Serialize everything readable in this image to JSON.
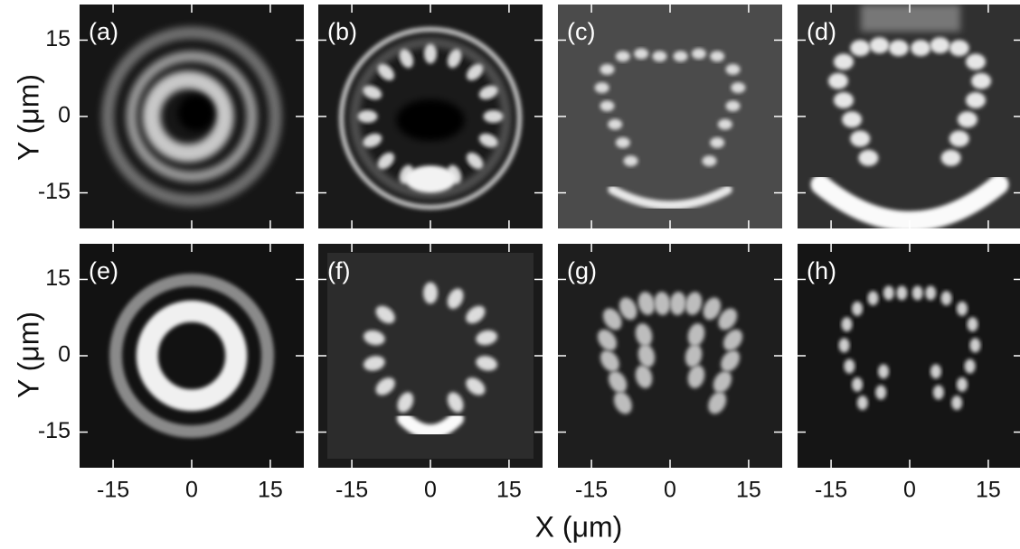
{
  "figure": {
    "panels": [
      {
        "label": "(a)"
      },
      {
        "label": "(b)"
      },
      {
        "label": "(c)"
      },
      {
        "label": "(d)"
      },
      {
        "label": "(e)"
      },
      {
        "label": "(f)"
      },
      {
        "label": "(g)"
      },
      {
        "label": "(h)"
      }
    ],
    "xlabel": "X (μm)",
    "ylabel": "Y (μm)",
    "xlim": [
      -21.4,
      21.4
    ],
    "ylim": [
      -22,
      22
    ],
    "xticks": [
      -15,
      0,
      15
    ],
    "yticks": [
      15,
      0,
      -15
    ]
  }
}
